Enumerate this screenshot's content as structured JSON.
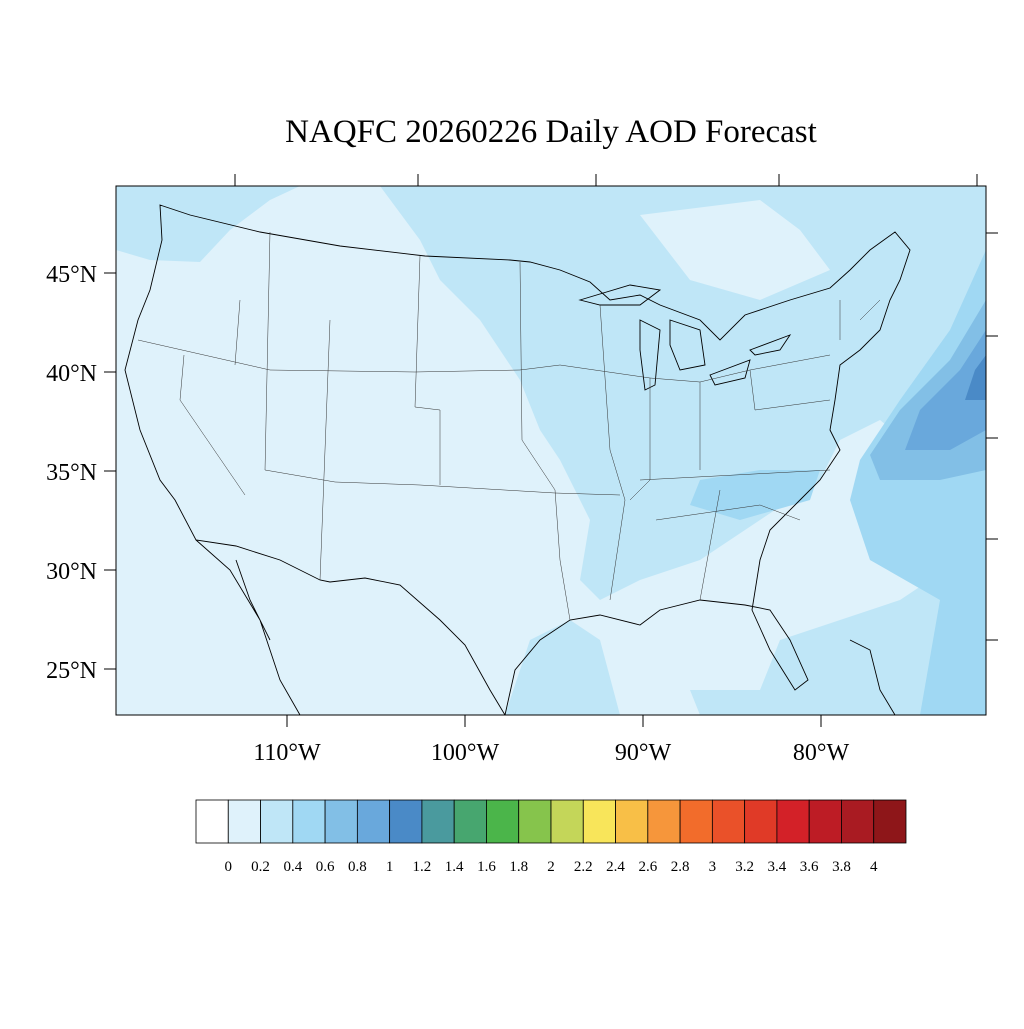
{
  "title": "NAQFC 20260226 Daily AOD Forecast",
  "lat_labels": [
    "45°N",
    "40°N",
    "35°N",
    "30°N",
    "25°N"
  ],
  "lon_labels": [
    "110°W",
    "100°W",
    "90°W",
    "80°W"
  ],
  "colorbar": {
    "colors": [
      "#ffffff",
      "#dff2fb",
      "#bfe6f7",
      "#a0d8f3",
      "#82bfe6",
      "#69a8dc",
      "#4a8ac7",
      "#4a9a9e",
      "#47a66f",
      "#4bb54a",
      "#86c44c",
      "#c4d659",
      "#f8e55a",
      "#f8bf47",
      "#f6963b",
      "#f26c2b",
      "#ea5129",
      "#e03a27",
      "#d32128",
      "#bd1c25",
      "#a91b22",
      "#8e1619"
    ],
    "labels": [
      "0",
      "0.2",
      "0.4",
      "0.6",
      "0.8",
      "1",
      "1.2",
      "1.4",
      "1.6",
      "1.8",
      "2",
      "2.2",
      "2.4",
      "2.6",
      "2.8",
      "3",
      "3.2",
      "3.4",
      "3.6",
      "3.8",
      "4"
    ]
  }
}
